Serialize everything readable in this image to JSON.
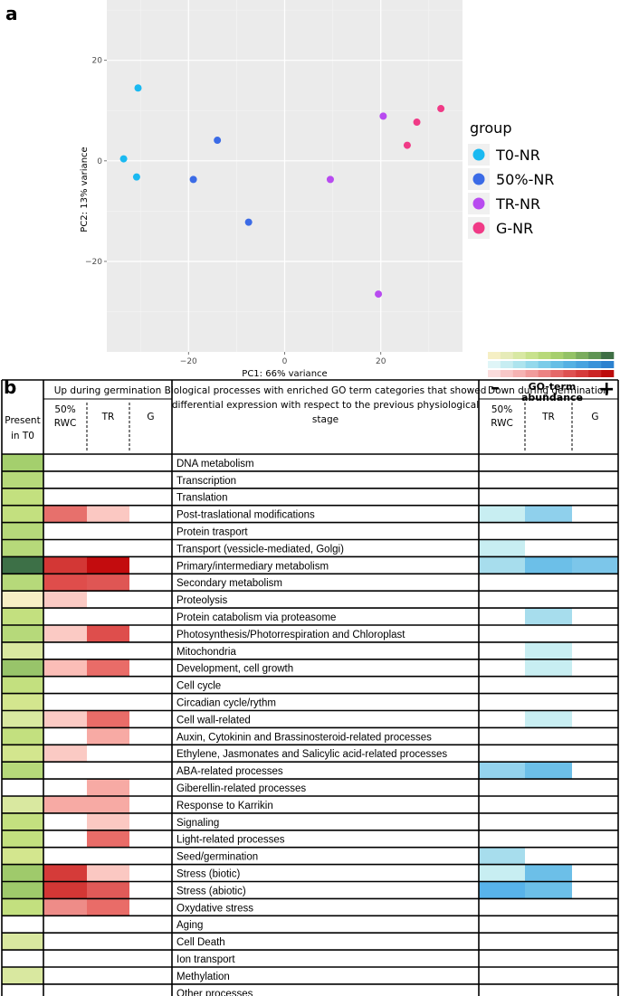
{
  "panel_a": {
    "label": "a",
    "chart_data": {
      "type": "scatter",
      "xlabel": "PC1: 66% variance",
      "ylabel": "PC2: 13% variance",
      "xlim": [
        -37,
        37
      ],
      "ylim": [
        -38,
        32
      ],
      "xticks": [
        -20,
        0,
        20
      ],
      "yticks": [
        20,
        0,
        -20
      ],
      "xtick_labels": [
        "−20",
        "0",
        "20"
      ],
      "ytick_labels": [
        "20",
        "0",
        "−20"
      ],
      "legend_title": "group",
      "series": [
        {
          "name": "T0-NR",
          "color": "#1ab9f1",
          "points": [
            [
              -30.5,
              14.5
            ],
            [
              -33.5,
              0.4
            ],
            [
              -30.8,
              -3.2
            ]
          ]
        },
        {
          "name": "50%-NR",
          "color": "#3b6be6",
          "points": [
            [
              -14,
              4.1
            ],
            [
              -19,
              -3.7
            ],
            [
              -7.5,
              -12.2
            ]
          ]
        },
        {
          "name": "TR-NR",
          "color": "#b84bf0",
          "points": [
            [
              9.5,
              -3.7
            ],
            [
              20.5,
              8.9
            ],
            [
              19.5,
              -26.5
            ]
          ]
        },
        {
          "name": "G-NR",
          "color": "#f03a86",
          "points": [
            [
              27.5,
              7.7
            ],
            [
              25.5,
              3.1
            ],
            [
              32.5,
              10.4
            ]
          ]
        }
      ]
    }
  },
  "panel_b": {
    "label": "b",
    "legend": {
      "minus": "–",
      "plus": "+",
      "caption_line1": "GO-term",
      "caption_line2": "abundance",
      "green_scale": [
        "#f5efc4",
        "#e6ebb8",
        "#d8e8a3",
        "#c8e28c",
        "#b8d97a",
        "#a6cf6d",
        "#93c266",
        "#7aac5d",
        "#5f9454",
        "#3f6f45"
      ],
      "blue_scale": [
        "#dff5f7",
        "#c6edf2",
        "#ade4ee",
        "#94d9ec",
        "#7ccce9",
        "#67bfe6",
        "#55b1e3",
        "#48a3df",
        "#3a93d9",
        "#2c82cf"
      ],
      "red_scale": [
        "#fbdcdc",
        "#f8c7c7",
        "#f5b2b2",
        "#f19b9b",
        "#ec8282",
        "#e56868",
        "#de5050",
        "#d63a3a",
        "#cb2424",
        "#bd0c0c"
      ]
    },
    "header": {
      "present": "Present in T0",
      "up_title": "Up during germination",
      "up_50": "50% RWC",
      "up_tr": "TR",
      "up_g": "G",
      "process_title": "Biological processes with enriched GO term categories that showed differential expression with respect to the previous physiological stage",
      "down_title": "Down during germination",
      "down_50": "50% RWC",
      "down_tr": "TR",
      "down_g": "G"
    },
    "chart_data": {
      "type": "heatmap",
      "columns": [
        "Present in T0",
        "Up 50% RWC",
        "Up TR",
        "Up G",
        "Down 50% RWC",
        "Down TR",
        "Down G"
      ],
      "rows": [
        {
          "process": "DNA metabolism",
          "present": "#a4cf6d",
          "up": [
            null,
            null,
            null
          ],
          "down": [
            null,
            null,
            null
          ]
        },
        {
          "process": "Transcription",
          "present": "#b6d97a",
          "up": [
            null,
            null,
            null
          ],
          "down": [
            null,
            null,
            null
          ]
        },
        {
          "process": "Translation",
          "present": "#c3e07f",
          "up": [
            null,
            null,
            null
          ],
          "down": [
            null,
            null,
            null
          ]
        },
        {
          "process": "Post-traslational modifications",
          "present": "#c3e07f",
          "up": [
            "#e7706c",
            "#fbc8c2",
            null
          ],
          "down": [
            "#c8eef2",
            "#8fd0ec",
            null
          ]
        },
        {
          "process": "Protein trasport",
          "present": "#b6d97a",
          "up": [
            null,
            null,
            null
          ],
          "down": [
            null,
            null,
            null
          ]
        },
        {
          "process": "Transport (vessicle-mediated, Golgi)",
          "present": "#b6d97a",
          "up": [
            null,
            null,
            null
          ],
          "down": [
            "#c8eef2",
            null,
            null
          ]
        },
        {
          "process": "Primary/intermediary metabolism",
          "present": "#3d7047",
          "up": [
            "#d33735",
            "#c30c0e",
            null
          ],
          "down": [
            "#a7dded",
            "#6cbfe8",
            "#7cc6ea"
          ]
        },
        {
          "process": "Secondary metabolism",
          "present": "#b6d97a",
          "up": [
            "#df4d4b",
            "#df5654",
            null
          ],
          "down": [
            null,
            null,
            null
          ]
        },
        {
          "process": "Proteolysis",
          "present": "#f6eec4",
          "up": [
            "#fbcac4",
            null,
            null
          ],
          "down": [
            null,
            null,
            null
          ]
        },
        {
          "process": "Protein catabolism via proteasome",
          "present": "#c3e07f",
          "up": [
            null,
            null,
            null
          ],
          "down": [
            null,
            "#a7dded",
            null
          ]
        },
        {
          "process": "Photosynthesis/Photorrespiration and Chloroplast",
          "present": "#b6d97a",
          "up": [
            "#fbcac4",
            "#de4e4c",
            null
          ],
          "down": [
            null,
            null,
            null
          ]
        },
        {
          "process": "Mitochondria",
          "present": "#d9e8a0",
          "up": [
            null,
            null,
            null
          ],
          "down": [
            null,
            "#c8eef2",
            null
          ]
        },
        {
          "process": "Development, cell growth",
          "present": "#98c46a",
          "up": [
            "#fbbdb7",
            "#e96c68",
            null
          ],
          "down": [
            null,
            "#c8eef2",
            null
          ]
        },
        {
          "process": "Cell cycle",
          "present": "#c3e07f",
          "up": [
            null,
            null,
            null
          ],
          "down": [
            null,
            null,
            null
          ]
        },
        {
          "process": "Circadian cycle/rythm",
          "present": "#d3e68e",
          "up": [
            null,
            null,
            null
          ],
          "down": [
            null,
            null,
            null
          ]
        },
        {
          "process": "Cell wall-related",
          "present": "#d9e8a0",
          "up": [
            "#fbcac4",
            "#e96c68",
            null
          ],
          "down": [
            null,
            "#c8eef2",
            null
          ]
        },
        {
          "process": "Auxin, Cytokinin and Brassinosteroid-related processes",
          "present": "#c3e07f",
          "up": [
            null,
            "#f7aaa4",
            null
          ],
          "down": [
            null,
            null,
            null
          ]
        },
        {
          "process": "Ethylene, Jasmonates and Salicylic acid-related processes",
          "present": "#d3e68e",
          "up": [
            "#fbcac4",
            null,
            null
          ],
          "down": [
            null,
            null,
            null
          ]
        },
        {
          "process": "ABA-related processes",
          "present": "#b6d97a",
          "up": [
            null,
            null,
            null
          ],
          "down": [
            "#94d3ee",
            "#6cbfe8",
            null
          ]
        },
        {
          "process": "Giberellin-related processes",
          "present": null,
          "up": [
            null,
            "#f7aaa4",
            null
          ],
          "down": [
            null,
            null,
            null
          ]
        },
        {
          "process": "Response to Karrikin",
          "present": "#d9e8a0",
          "up": [
            "#f7aaa4",
            "#f7aaa4",
            null
          ],
          "down": [
            null,
            null,
            null
          ]
        },
        {
          "process": "Signaling",
          "present": "#c3e07f",
          "up": [
            null,
            "#fbc8c2",
            null
          ],
          "down": [
            null,
            null,
            null
          ]
        },
        {
          "process": "Light-related processes",
          "present": "#c3e07f",
          "up": [
            null,
            "#e96c68",
            null
          ],
          "down": [
            null,
            null,
            null
          ]
        },
        {
          "process": "Seed/germination",
          "present": "#d3e68e",
          "up": [
            null,
            null,
            null
          ],
          "down": [
            "#a7dded",
            null,
            null
          ]
        },
        {
          "process": "Stress (biotic)",
          "present": "#9fca6b",
          "up": [
            "#d53b39",
            "#fbc8c2",
            null
          ],
          "down": [
            "#c8eef2",
            "#6cbfe8",
            null
          ]
        },
        {
          "process": "Stress (abiotic)",
          "present": "#9fca6b",
          "up": [
            "#d33735",
            "#e05a58",
            null
          ],
          "down": [
            "#58b3ea",
            "#6cbfe8",
            null
          ]
        },
        {
          "process": "Oxydative stress",
          "present": "#c3e07f",
          "up": [
            "#ee8c88",
            "#e96c68",
            null
          ],
          "down": [
            null,
            null,
            null
          ]
        },
        {
          "process": "Aging",
          "present": null,
          "up": [
            null,
            null,
            null
          ],
          "down": [
            null,
            null,
            null
          ]
        },
        {
          "process": "Cell Death",
          "present": "#d9e8a0",
          "up": [
            null,
            null,
            null
          ],
          "down": [
            null,
            null,
            null
          ]
        },
        {
          "process": "Ion transport",
          "present": null,
          "up": [
            null,
            null,
            null
          ],
          "down": [
            null,
            null,
            null
          ]
        },
        {
          "process": "Methylation",
          "present": "#d9e8a0",
          "up": [
            null,
            null,
            null
          ],
          "down": [
            null,
            null,
            null
          ]
        },
        {
          "process": "Other processes",
          "present": null,
          "up": [
            null,
            null,
            null
          ],
          "down": [
            null,
            null,
            null
          ]
        }
      ]
    }
  }
}
